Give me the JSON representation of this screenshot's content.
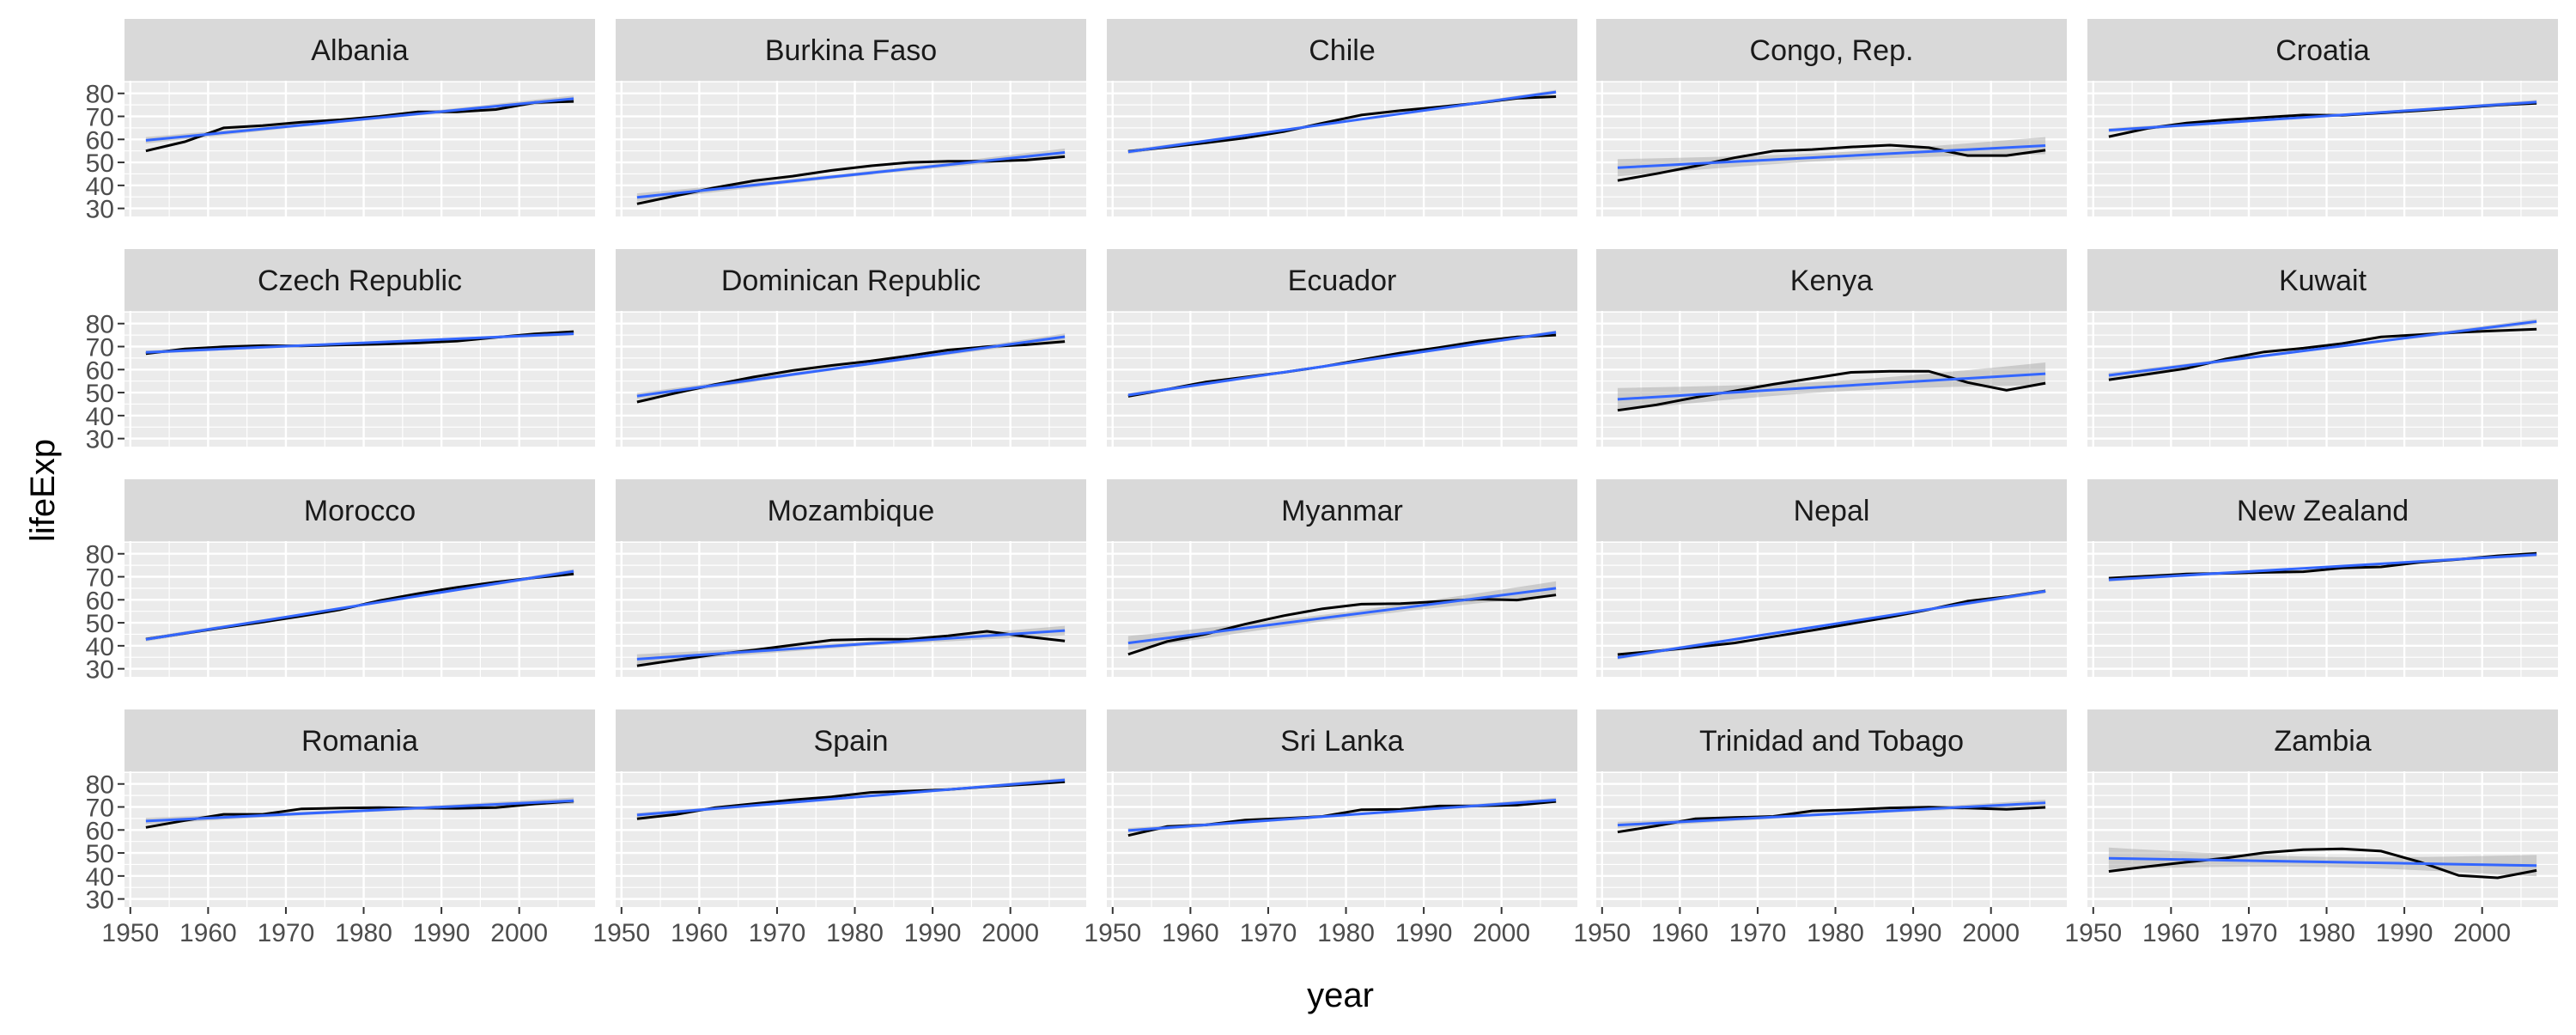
{
  "chart_data": {
    "type": "line",
    "xlabel": "year",
    "ylabel": "lifeExp",
    "x_ticks": [
      1950,
      1960,
      1970,
      1980,
      1990,
      2000
    ],
    "y_ticks": [
      30,
      40,
      50,
      60,
      70,
      80
    ],
    "xlim": [
      1949.25,
      2009.75
    ],
    "ylim": [
      26.5,
      85.5
    ],
    "grid": true,
    "x": [
      1952,
      1957,
      1962,
      1967,
      1972,
      1977,
      1982,
      1987,
      1992,
      1997,
      2002,
      2007
    ],
    "colors": {
      "panel_bg": "#ebebeb",
      "strip_bg": "#d9d9d9",
      "grid": "#ffffff",
      "data_line": "#000000",
      "fit_line": "#3366ff",
      "ribbon": "#999999",
      "text": "#1a1a1a",
      "tick_text": "#4d4d4d"
    },
    "panels": [
      {
        "country": "Albania",
        "lifeExp": [
          55,
          59,
          65,
          66,
          67.5,
          68.5,
          70,
          72,
          72,
          73,
          76,
          76.5
        ],
        "fit": [
          59.6,
          77.7
        ],
        "band": 1.2
      },
      {
        "country": "Burkina Faso",
        "lifeExp": [
          32,
          35.5,
          39,
          42,
          44,
          46.5,
          48.5,
          50,
          50.5,
          50.5,
          51,
          52.5
        ],
        "fit": [
          34.8,
          54.3
        ],
        "band": 1.5
      },
      {
        "country": "Chile",
        "lifeExp": [
          54.8,
          56.6,
          58.5,
          60.6,
          63.4,
          67.1,
          70.6,
          72.5,
          74.1,
          75.8,
          77.9,
          78.6
        ],
        "fit": [
          54.6,
          80.6
        ],
        "band": 0.8
      },
      {
        "country": "Congo, Rep.",
        "lifeExp": [
          42.1,
          45.1,
          48.4,
          52.0,
          54.9,
          55.6,
          56.7,
          57.5,
          56.4,
          52.96,
          52.97,
          55.3
        ],
        "fit": [
          47.7,
          57.3
        ],
        "band": 3.2
      },
      {
        "country": "Croatia",
        "lifeExp": [
          61.2,
          64.8,
          67.1,
          68.5,
          69.6,
          70.6,
          70.5,
          71.5,
          72.5,
          73.7,
          74.9,
          75.7
        ],
        "fit": [
          64.0,
          76.2
        ],
        "band": 0.8
      },
      {
        "country": "Czech Republic",
        "lifeExp": [
          66.9,
          69.0,
          69.9,
          70.4,
          70.3,
          70.7,
          71.0,
          71.6,
          72.4,
          74.0,
          75.5,
          76.5
        ],
        "fit": [
          67.5,
          75.6
        ],
        "band": 0.7
      },
      {
        "country": "Dominican Republic",
        "lifeExp": [
          45.9,
          49.8,
          53.5,
          56.8,
          59.6,
          61.8,
          63.7,
          66.0,
          68.5,
          69.96,
          70.8,
          72.2
        ],
        "fit": [
          48.5,
          74.3
        ],
        "band": 1.2
      },
      {
        "country": "Ecuador",
        "lifeExp": [
          48.4,
          51.4,
          54.6,
          56.7,
          58.8,
          61.3,
          64.3,
          67.2,
          69.6,
          72.3,
          74.2,
          75.0
        ],
        "fit": [
          48.9,
          76.2
        ],
        "band": 0.7
      },
      {
        "country": "Kenya",
        "lifeExp": [
          42.3,
          44.7,
          47.9,
          50.7,
          53.6,
          56.2,
          58.8,
          59.3,
          59.3,
          54.4,
          50.99,
          54.1
        ],
        "fit": [
          47.1,
          58.2
        ],
        "band": 4.2
      },
      {
        "country": "Kuwait",
        "lifeExp": [
          55.6,
          58.0,
          60.5,
          64.6,
          67.7,
          69.3,
          71.3,
          74.2,
          75.2,
          76.2,
          76.9,
          77.6
        ],
        "fit": [
          57.5,
          80.9
        ],
        "band": 1.0
      },
      {
        "country": "Morocco",
        "lifeExp": [
          42.9,
          45.4,
          47.9,
          50.3,
          52.9,
          55.7,
          59.6,
          62.7,
          65.4,
          67.7,
          69.6,
          71.2
        ],
        "fit": [
          42.8,
          72.4
        ],
        "band": 0.8
      },
      {
        "country": "Mozambique",
        "lifeExp": [
          31.3,
          33.8,
          36.2,
          38.1,
          40.3,
          42.5,
          42.8,
          42.9,
          44.3,
          46.3,
          44.0,
          42.1
        ],
        "fit": [
          34.2,
          46.6
        ],
        "band": 1.8
      },
      {
        "country": "Myanmar",
        "lifeExp": [
          36.3,
          41.9,
          45.1,
          49.4,
          53.1,
          56.1,
          58.1,
          58.3,
          59.3,
          60.3,
          59.9,
          62.1
        ],
        "fit": [
          41.2,
          65.0
        ],
        "band": 2.6
      },
      {
        "country": "Nepal",
        "lifeExp": [
          36.2,
          37.7,
          39.4,
          41.2,
          43.97,
          46.7,
          49.6,
          52.5,
          55.7,
          59.4,
          61.3,
          63.8
        ],
        "fit": [
          34.9,
          63.7
        ],
        "band": 0.8
      },
      {
        "country": "New Zealand",
        "lifeExp": [
          69.4,
          70.3,
          71.2,
          71.5,
          71.9,
          72.2,
          73.8,
          74.3,
          76.3,
          77.6,
          79.1,
          80.2
        ],
        "fit": [
          68.7,
          79.6
        ],
        "band": 0.7
      },
      {
        "country": "Romania",
        "lifeExp": [
          61.1,
          64.1,
          66.8,
          66.8,
          69.2,
          69.5,
          69.7,
          69.5,
          69.4,
          69.7,
          71.3,
          72.5
        ],
        "fit": [
          63.9,
          72.7
        ],
        "band": 1.2
      },
      {
        "country": "Spain",
        "lifeExp": [
          64.9,
          66.7,
          69.7,
          71.4,
          73.1,
          74.4,
          76.3,
          76.9,
          77.6,
          78.8,
          79.8,
          80.9
        ],
        "fit": [
          66.5,
          81.7
        ],
        "band": 0.8
      },
      {
        "country": "Sri Lanka",
        "lifeExp": [
          57.6,
          61.5,
          62.2,
          64.3,
          65.0,
          65.9,
          68.8,
          69.0,
          70.4,
          70.5,
          70.8,
          72.4
        ],
        "fit": [
          59.8,
          73.0
        ],
        "band": 0.9
      },
      {
        "country": "Trinidad and Tobago",
        "lifeExp": [
          59.1,
          61.8,
          64.9,
          65.4,
          65.9,
          68.3,
          68.8,
          69.6,
          69.9,
          69.5,
          68.98,
          69.8
        ],
        "fit": [
          62.1,
          71.8
        ],
        "band": 1.2
      },
      {
        "country": "Zambia",
        "lifeExp": [
          42.0,
          44.1,
          46.0,
          47.8,
          50.1,
          51.4,
          51.8,
          50.8,
          46.1,
          40.2,
          39.2,
          42.4
        ],
        "fit": [
          47.7,
          44.5
        ],
        "band": 4.0
      }
    ]
  }
}
